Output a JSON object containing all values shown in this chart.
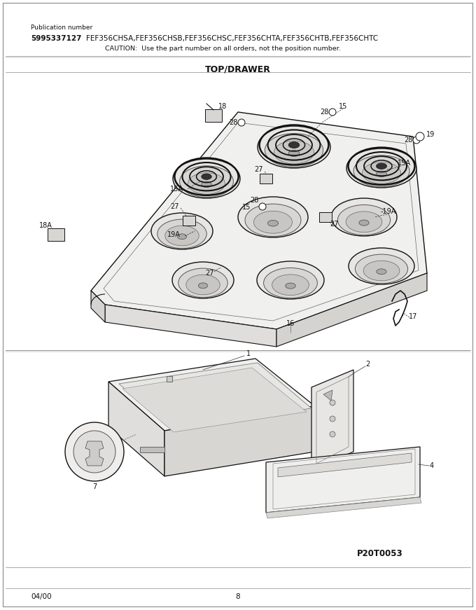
{
  "bg_color": "#ffffff",
  "title_pub": "Publication number",
  "pub_number": "5995337127",
  "pub_models": "    FEF356CHSA,FEF356CHSB,FEF356CHSC,FEF356CHTA,FEF356CHTB,FEF356CHTC",
  "caution": "CAUTION:  Use the part number on all orders, not the position number.",
  "section_title": "TOP/DRAWER",
  "footer_left": "04/00",
  "footer_center": "8",
  "footer_right": "P20T0053"
}
